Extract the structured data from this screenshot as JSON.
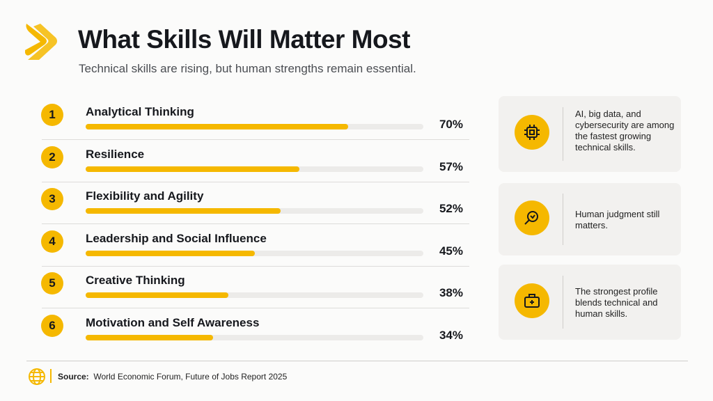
{
  "chart_data": {
    "type": "bar",
    "orientation": "horizontal",
    "title": "What Skills Will Matter Most",
    "subtitle": "Technical skills are rising, but human strengths remain essential.",
    "ranks": [
      "1",
      "2",
      "3",
      "4",
      "5",
      "6"
    ],
    "categories": [
      "Analytical Thinking",
      "Resilience",
      "Flexibility and Agility",
      "Leadership and Social Influence",
      "Creative Thinking",
      "Motivation and Self Awareness"
    ],
    "values": [
      70,
      57,
      52,
      45,
      38,
      34
    ],
    "value_labels": [
      "70%",
      "57%",
      "52%",
      "45%",
      "38%",
      "34%"
    ],
    "xlim": [
      0,
      90
    ],
    "color": "#f5b800"
  },
  "insights": [
    "AI, big data, and cybersecurity are among the fastest growing technical skills.",
    "Human judgment still matters.",
    "The strongest profile blends technical and human skills."
  ],
  "source": {
    "label": "Source:",
    "text": "World Economic Forum, Future of Jobs Report 2025"
  }
}
